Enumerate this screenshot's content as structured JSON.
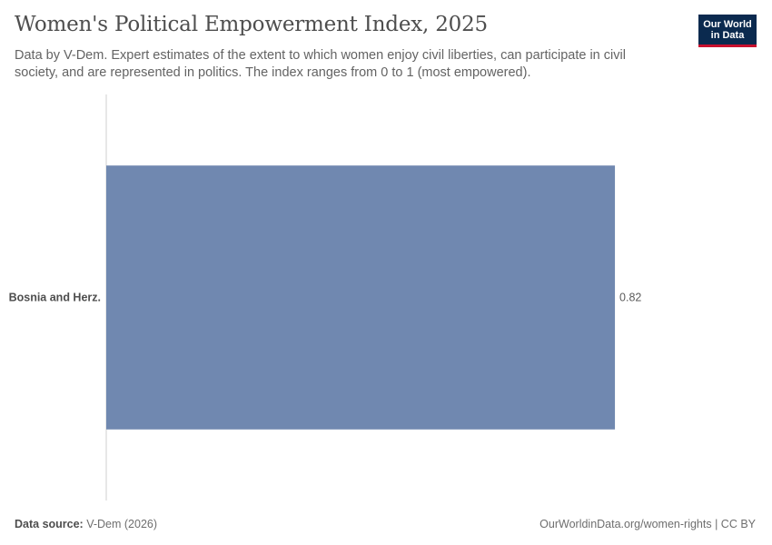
{
  "header": {
    "title": "Women's Political Empowerment Index, 2025",
    "subtitle": "Data by V-Dem. Expert estimates of the extent to which women enjoy civil liberties, can participate in civil society, and are represented in politics. The index ranges from 0 to 1 (most empowered).",
    "logo_line1": "Our World",
    "logo_line2": "in Data"
  },
  "footer": {
    "source_label": "Data source:",
    "source_value": "V-Dem (2026)",
    "link": "OurWorldinData.org/women-rights | CC BY"
  },
  "colors": {
    "bar": "#7088b0",
    "axis": "#cfcfcf"
  },
  "chart_data": {
    "type": "bar",
    "orientation": "horizontal",
    "title": "Women's Political Empowerment Index, 2025",
    "categories": [
      "Bosnia and Herz."
    ],
    "values": [
      0.82
    ],
    "value_labels": [
      "0.82"
    ],
    "xlim": [
      0,
      1
    ],
    "xlabel": "",
    "ylabel": "",
    "grid": false
  }
}
